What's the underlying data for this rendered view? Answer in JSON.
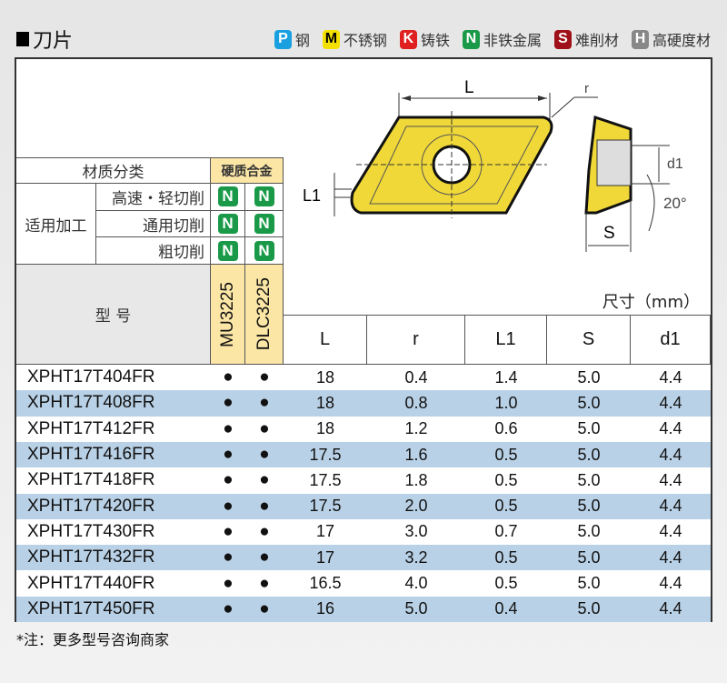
{
  "title": "刀片",
  "legend": [
    {
      "letter": "P",
      "label": "钢",
      "color": "#1aa0e0",
      "text": "#fff"
    },
    {
      "letter": "M",
      "label": "不锈钢",
      "color": "#f3e000",
      "text": "#000"
    },
    {
      "letter": "K",
      "label": "铸铁",
      "color": "#e02020",
      "text": "#fff"
    },
    {
      "letter": "N",
      "label": "非铁金属",
      "color": "#1a9a48",
      "text": "#fff"
    },
    {
      "letter": "S",
      "label": "难削材",
      "color": "#a01018",
      "text": "#fff"
    },
    {
      "letter": "H",
      "label": "高硬度材",
      "color": "#888888",
      "text": "#fff"
    }
  ],
  "diagram": {
    "L": "L",
    "r": "r",
    "L1": "L1",
    "S": "S",
    "d1": "d1",
    "angle": "20°"
  },
  "material": {
    "header": "材质分类",
    "grade_group": "硬质合金",
    "process_label": "适用加工",
    "processes": [
      "高速・轻切削",
      "通用切削",
      "粗切削"
    ],
    "symbol": "N",
    "grades": [
      "MU3225",
      "DLC3225"
    ],
    "model_header": "型  号"
  },
  "dimensions_unit": "尺寸（mm）",
  "columns": [
    "L",
    "r",
    "L1",
    "S",
    "d1"
  ],
  "rows": [
    {
      "model": "XPHT17T404FR",
      "mu": "●",
      "dlc": "●",
      "L": "18",
      "r": "0.4",
      "L1": "1.4",
      "S": "5.0",
      "d1": "4.4"
    },
    {
      "model": "XPHT17T408FR",
      "mu": "●",
      "dlc": "●",
      "L": "18",
      "r": "0.8",
      "L1": "1.0",
      "S": "5.0",
      "d1": "4.4"
    },
    {
      "model": "XPHT17T412FR",
      "mu": "●",
      "dlc": "●",
      "L": "18",
      "r": "1.2",
      "L1": "0.6",
      "S": "5.0",
      "d1": "4.4"
    },
    {
      "model": "XPHT17T416FR",
      "mu": "●",
      "dlc": "●",
      "L": "17.5",
      "r": "1.6",
      "L1": "0.5",
      "S": "5.0",
      "d1": "4.4"
    },
    {
      "model": "XPHT17T418FR",
      "mu": "●",
      "dlc": "●",
      "L": "17.5",
      "r": "1.8",
      "L1": "0.5",
      "S": "5.0",
      "d1": "4.4"
    },
    {
      "model": "XPHT17T420FR",
      "mu": "●",
      "dlc": "●",
      "L": "17.5",
      "r": "2.0",
      "L1": "0.5",
      "S": "5.0",
      "d1": "4.4"
    },
    {
      "model": "XPHT17T430FR",
      "mu": "●",
      "dlc": "●",
      "L": "17",
      "r": "3.0",
      "L1": "0.7",
      "S": "5.0",
      "d1": "4.4"
    },
    {
      "model": "XPHT17T432FR",
      "mu": "●",
      "dlc": "●",
      "L": "17",
      "r": "3.2",
      "L1": "0.5",
      "S": "5.0",
      "d1": "4.4"
    },
    {
      "model": "XPHT17T440FR",
      "mu": "●",
      "dlc": "●",
      "L": "16.5",
      "r": "4.0",
      "L1": "0.5",
      "S": "5.0",
      "d1": "4.4"
    },
    {
      "model": "XPHT17T450FR",
      "mu": "●",
      "dlc": "●",
      "L": "16",
      "r": "5.0",
      "L1": "0.4",
      "S": "5.0",
      "d1": "4.4"
    }
  ],
  "stripe_color": "#b9d1e6",
  "grade_bg": "#fbe6a6",
  "note": "*注：更多型号咨询商家"
}
